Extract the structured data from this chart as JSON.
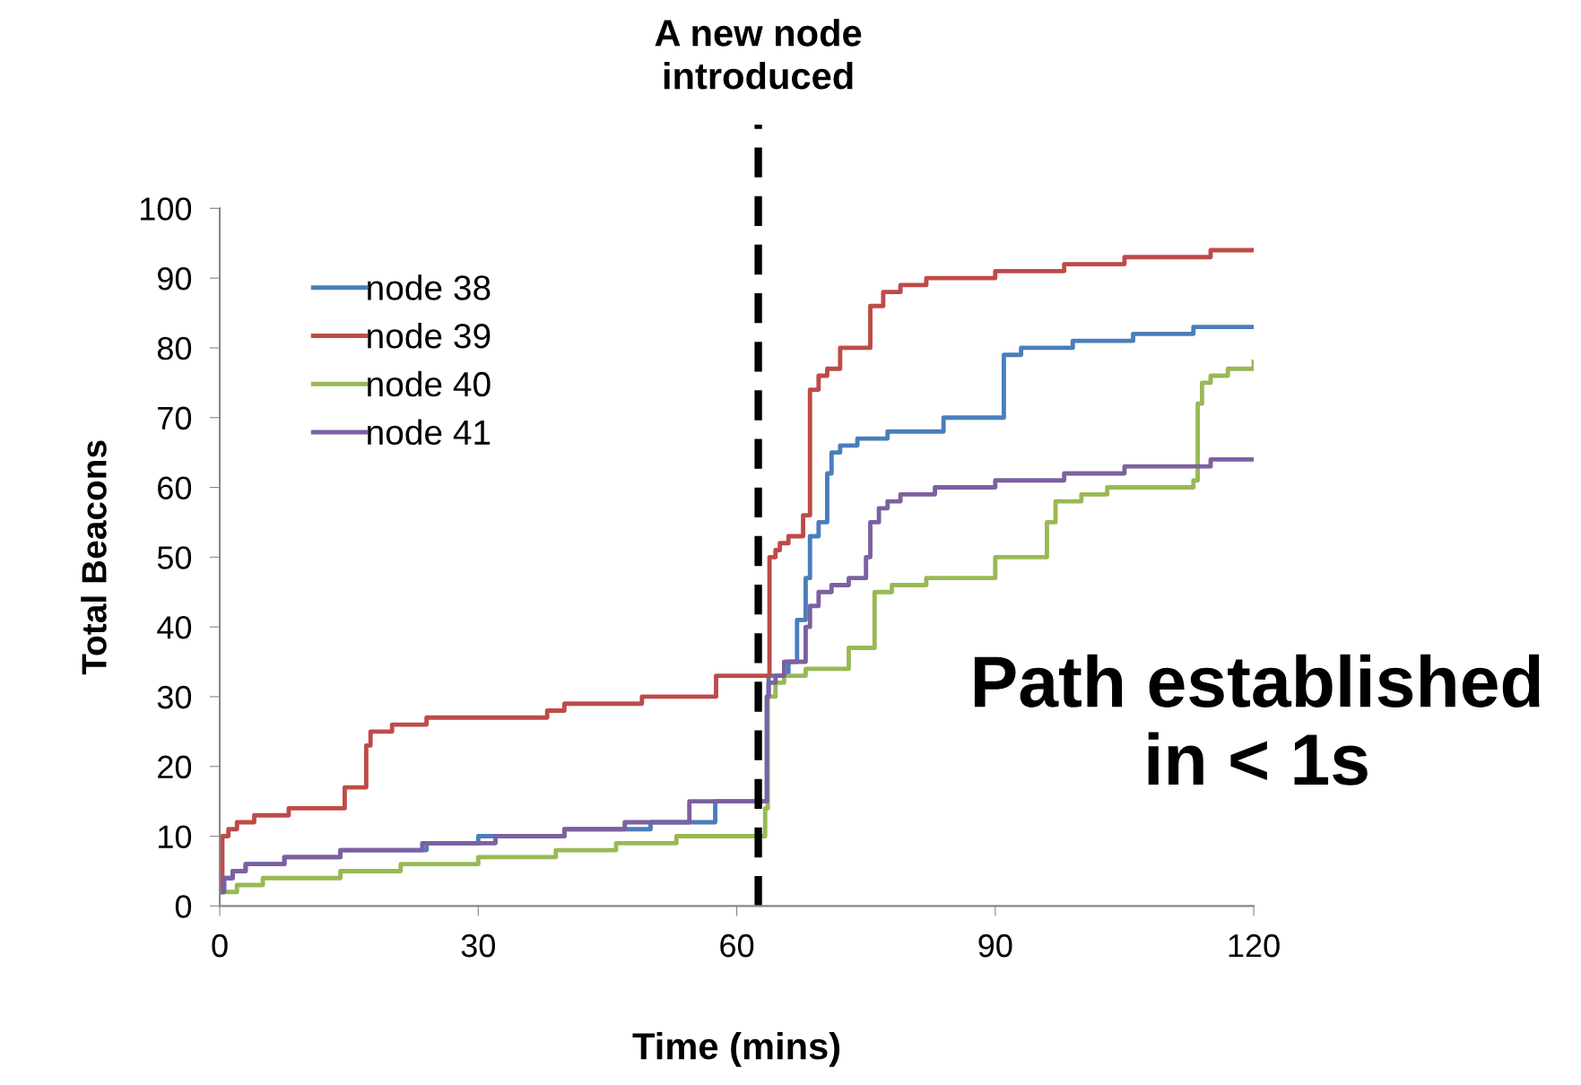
{
  "chart_data": {
    "type": "step",
    "xlabel": "Time (mins)",
    "ylabel": "Total Beacons",
    "xlim": [
      0,
      120
    ],
    "xticks": [
      0,
      30,
      60,
      90,
      120
    ],
    "ylim": [
      0,
      100
    ],
    "yticks": [
      0,
      10,
      20,
      30,
      40,
      50,
      60,
      70,
      80,
      90,
      100
    ],
    "grid": false,
    "legend": "top left",
    "line_style": "solid",
    "marker": "none",
    "series": [
      {
        "name": "node 38",
        "color": "#4a7ebb",
        "x": [
          0,
          0.5,
          1.5,
          3,
          7.5,
          14,
          24,
          30,
          40,
          50,
          57.5,
          63.5,
          63.7,
          66,
          67,
          68,
          68.5,
          69.5,
          70.5,
          71,
          72,
          74,
          77.5,
          84,
          91,
          93,
          99,
          106,
          113,
          120
        ],
        "values": [
          2,
          4,
          5,
          6,
          7,
          8,
          9,
          10,
          11,
          12,
          15,
          30,
          33,
          35,
          41,
          47,
          53,
          55,
          62,
          65,
          66,
          67,
          68,
          70,
          79,
          80,
          81,
          82,
          83,
          83
        ]
      },
      {
        "name": "node 39",
        "color": "#be4b48",
        "x": [
          0,
          0.3,
          1,
          2,
          4,
          8,
          14.5,
          17,
          17.5,
          20,
          24,
          38,
          40,
          49,
          57.6,
          63.8,
          64.5,
          65,
          66,
          67.7,
          68.5,
          69.5,
          70.5,
          72,
          75.5,
          77,
          79,
          82,
          90,
          98,
          105,
          115,
          120
        ],
        "values": [
          2,
          10,
          11,
          12,
          13,
          14,
          17,
          23,
          25,
          26,
          27,
          28,
          29,
          30,
          33,
          50,
          51,
          52,
          53,
          56,
          74,
          76,
          77,
          80,
          86,
          88,
          89,
          90,
          91,
          92,
          93,
          94,
          94
        ]
      },
      {
        "name": "node 40",
        "color": "#98b954",
        "x": [
          0,
          2,
          5,
          14,
          21,
          30,
          39,
          46,
          53,
          63.3,
          63.6,
          64.5,
          65.5,
          68,
          73,
          76,
          78,
          82,
          90,
          96,
          97,
          100,
          103,
          113,
          113.5,
          114,
          115,
          117,
          120
        ],
        "values": [
          2,
          3,
          4,
          5,
          6,
          7,
          8,
          9,
          10,
          14,
          30,
          32,
          33,
          34,
          37,
          45,
          46,
          47,
          50,
          55,
          58,
          59,
          60,
          61,
          72,
          75,
          76,
          77,
          78
        ]
      },
      {
        "name": "node 41",
        "color": "#7d60a0",
        "x": [
          0,
          0.5,
          1.5,
          3,
          7.5,
          14,
          23.5,
          32,
          40,
          47,
          54.5,
          63.5,
          63.7,
          64.5,
          65.5,
          68,
          68.5,
          69.5,
          71,
          73,
          75,
          75.5,
          76.5,
          77.5,
          79,
          83,
          90,
          98,
          105,
          115,
          120
        ],
        "values": [
          2,
          4,
          5,
          6,
          7,
          8,
          9,
          10,
          11,
          12,
          15,
          30,
          32,
          33,
          35,
          40,
          43,
          45,
          46,
          47,
          50,
          55,
          57,
          58,
          59,
          60,
          61,
          62,
          63,
          64,
          64
        ]
      }
    ],
    "ref_lines": [
      {
        "axis": "x",
        "value": 62.5,
        "label": "A new node\nintroduced",
        "color": "#000000",
        "line_style": "dashed"
      }
    ],
    "annotations": [
      "Path established\nin < 1s"
    ]
  }
}
